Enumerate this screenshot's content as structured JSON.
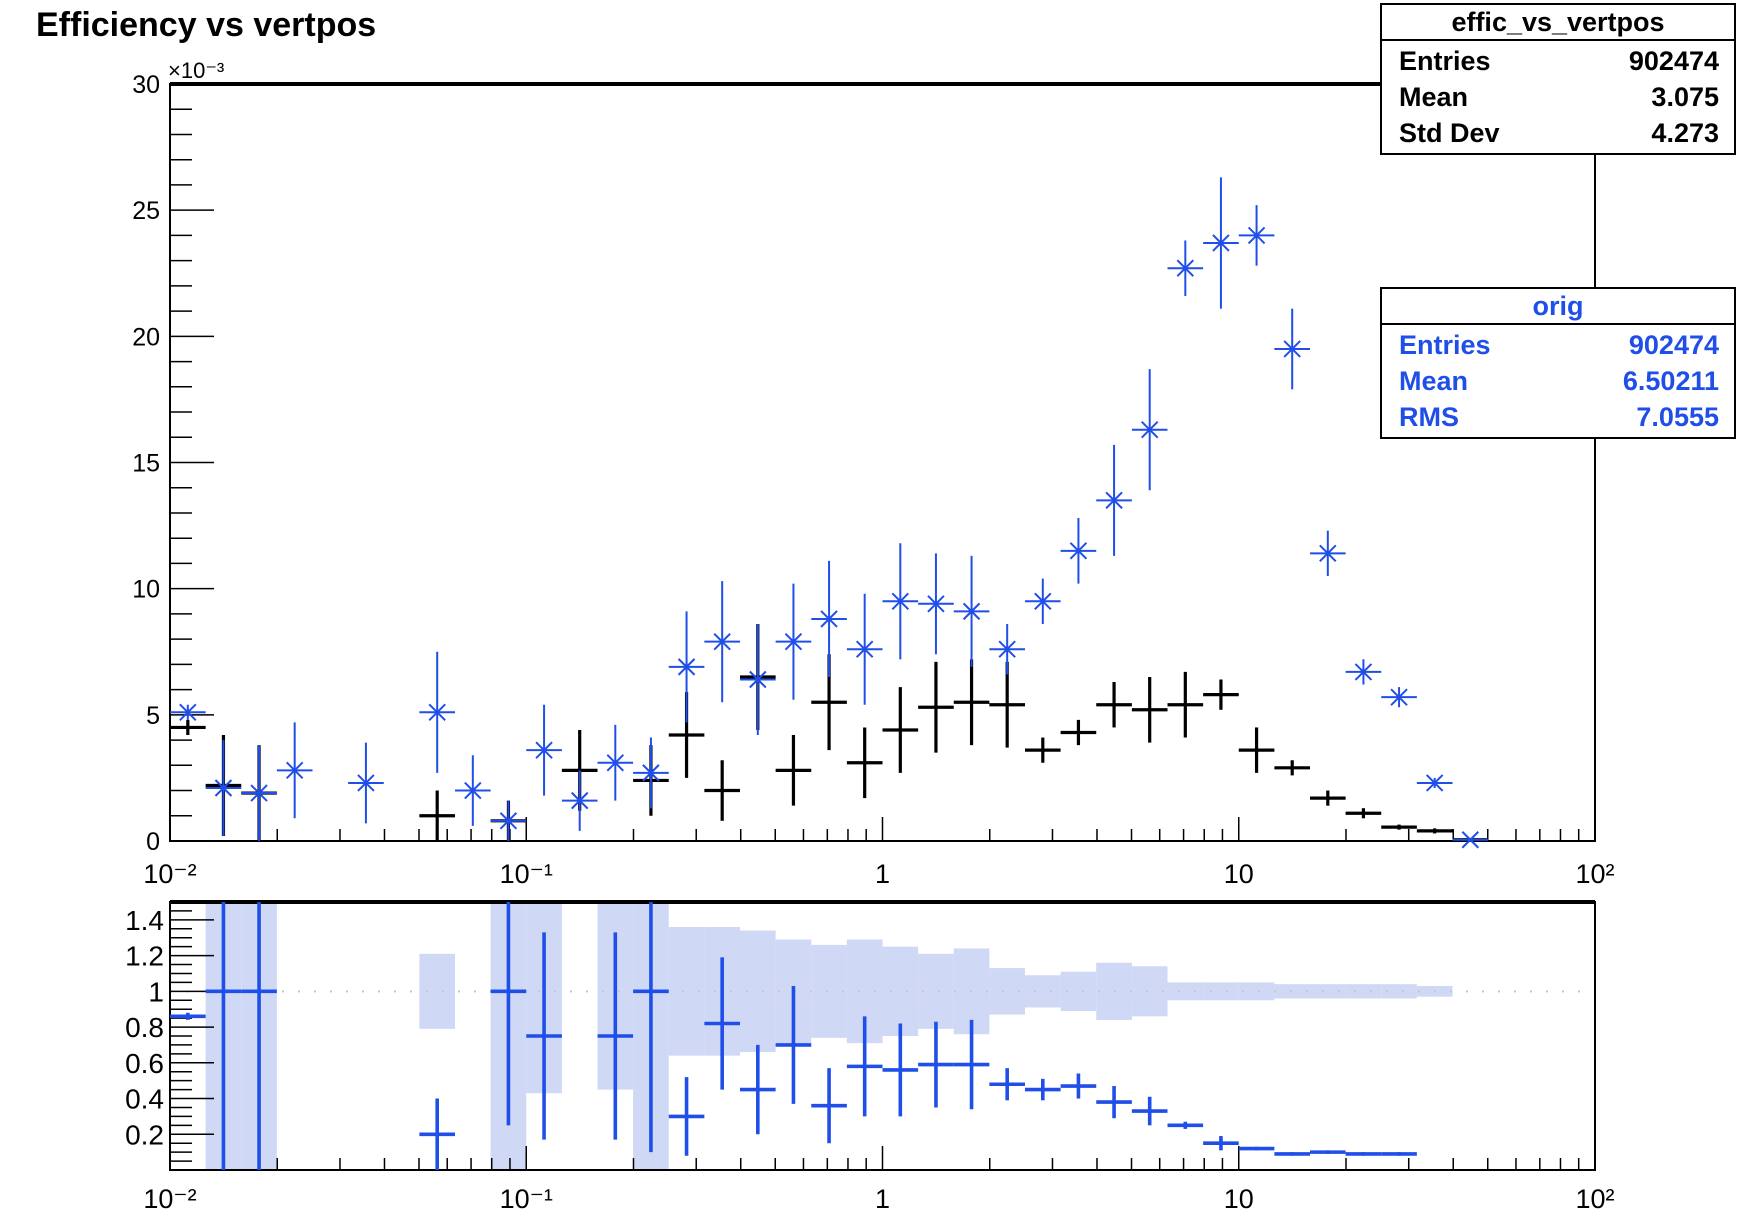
{
  "title": "Efficiency vs vertpos",
  "colors": {
    "black_series": "#000000",
    "blue_series": "#1f4fe8",
    "band_fill": "#cfd8f4",
    "dotted_line": "#c8c8c8"
  },
  "top_axis": {
    "exponent_label": "×10⁻³",
    "y_tick_labels": [
      "0",
      "5",
      "10",
      "15",
      "20",
      "25",
      "30"
    ]
  },
  "x_tick_labels": [
    "10⁻²",
    "10⁻¹",
    "1",
    "10",
    "10²"
  ],
  "ratio_axis": {
    "y_tick_labels": [
      "0.2",
      "0.4",
      "0.6",
      "0.8",
      "1",
      "1.2",
      "1.4"
    ]
  },
  "stats_boxes": [
    {
      "title": "effic_vs_vertpos",
      "color": "#000000",
      "rows": [
        {
          "key": "Entries",
          "value": "902474"
        },
        {
          "key": "Mean",
          "value": "3.075"
        },
        {
          "key": "Std Dev",
          "value": "4.273"
        }
      ]
    },
    {
      "title": "orig",
      "color": "#1f4fe8",
      "rows": [
        {
          "key": "Entries",
          "value": "902474"
        },
        {
          "key": "Mean",
          "value": "6.50211"
        },
        {
          "key": "RMS",
          "value": "7.0555"
        }
      ]
    }
  ],
  "chart_data": [
    {
      "type": "scatter",
      "x_scale": "log",
      "xlim": [
        0.01,
        100
      ],
      "ylim": [
        0,
        30
      ],
      "y_multiplier": "1e-3",
      "bin_edges": [
        0.01,
        0.01259,
        0.01585,
        0.01995,
        0.02512,
        0.03162,
        0.03981,
        0.05012,
        0.0631,
        0.07943,
        0.1,
        0.1259,
        0.1585,
        0.1995,
        0.2512,
        0.3162,
        0.3981,
        0.5012,
        0.631,
        0.7943,
        1.0,
        1.259,
        1.585,
        1.995,
        2.512,
        3.162,
        3.981,
        5.012,
        6.31,
        7.943,
        10.0,
        12.59,
        15.85,
        19.95,
        25.12,
        31.62,
        39.81,
        50.12
      ],
      "series": [
        {
          "style": "black-cross",
          "points": [
            {
              "bin": 0,
              "y": 4.5,
              "err": 0.3
            },
            {
              "bin": 1,
              "y": 2.2,
              "err": 2.0
            },
            {
              "bin": 2,
              "y": 1.9,
              "err": 1.9
            },
            {
              "bin": 7,
              "y": 1.0,
              "err": 1.0
            },
            {
              "bin": 9,
              "y": 0.8,
              "err": 0.8
            },
            {
              "bin": 11,
              "y": 2.8,
              "err": 1.6
            },
            {
              "bin": 13,
              "y": 2.4,
              "err": 1.4
            },
            {
              "bin": 14,
              "y": 4.2,
              "err": 1.7
            },
            {
              "bin": 15,
              "y": 2.0,
              "err": 1.2
            },
            {
              "bin": 16,
              "y": 6.5,
              "err": 2.1
            },
            {
              "bin": 17,
              "y": 2.8,
              "err": 1.4
            },
            {
              "bin": 18,
              "y": 5.5,
              "err": 1.9
            },
            {
              "bin": 19,
              "y": 3.1,
              "err": 1.4
            },
            {
              "bin": 20,
              "y": 4.4,
              "err": 1.7
            },
            {
              "bin": 21,
              "y": 5.3,
              "err": 1.8
            },
            {
              "bin": 22,
              "y": 5.5,
              "err": 1.7
            },
            {
              "bin": 23,
              "y": 5.4,
              "err": 1.7
            },
            {
              "bin": 24,
              "y": 3.6,
              "err": 0.5
            },
            {
              "bin": 25,
              "y": 4.3,
              "err": 0.5
            },
            {
              "bin": 26,
              "y": 5.4,
              "err": 0.9
            },
            {
              "bin": 27,
              "y": 5.2,
              "err": 1.3
            },
            {
              "bin": 28,
              "y": 5.4,
              "err": 1.3
            },
            {
              "bin": 29,
              "y": 5.8,
              "err": 0.6
            },
            {
              "bin": 30,
              "y": 3.6,
              "err": 0.9
            },
            {
              "bin": 31,
              "y": 2.9,
              "err": 0.3
            },
            {
              "bin": 32,
              "y": 1.7,
              "err": 0.3
            },
            {
              "bin": 33,
              "y": 1.1,
              "err": 0.2
            },
            {
              "bin": 34,
              "y": 0.55,
              "err": 0.1
            },
            {
              "bin": 35,
              "y": 0.4,
              "err": 0.1
            },
            {
              "bin": 36,
              "y": 0.05,
              "err": 0.05
            }
          ]
        },
        {
          "style": "blue-star",
          "points": [
            {
              "bin": 0,
              "y": 5.1,
              "err": 0.3
            },
            {
              "bin": 1,
              "y": 2.1,
              "err": 1.9
            },
            {
              "bin": 2,
              "y": 1.9,
              "err": 1.9
            },
            {
              "bin": 3,
              "y": 2.8,
              "err": 1.9
            },
            {
              "bin": 5,
              "y": 2.3,
              "err": 1.6
            },
            {
              "bin": 7,
              "y": 5.1,
              "err": 2.4
            },
            {
              "bin": 8,
              "y": 2.0,
              "err": 1.4
            },
            {
              "bin": 9,
              "y": 0.8,
              "err": 0.8
            },
            {
              "bin": 10,
              "y": 3.6,
              "err": 1.8
            },
            {
              "bin": 11,
              "y": 1.6,
              "err": 1.2
            },
            {
              "bin": 12,
              "y": 3.1,
              "err": 1.5
            },
            {
              "bin": 13,
              "y": 2.7,
              "err": 1.4
            },
            {
              "bin": 14,
              "y": 6.9,
              "err": 2.2
            },
            {
              "bin": 15,
              "y": 7.9,
              "err": 2.4
            },
            {
              "bin": 16,
              "y": 6.4,
              "err": 2.2
            },
            {
              "bin": 17,
              "y": 7.9,
              "err": 2.3
            },
            {
              "bin": 18,
              "y": 8.8,
              "err": 2.3
            },
            {
              "bin": 19,
              "y": 7.6,
              "err": 2.2
            },
            {
              "bin": 20,
              "y": 9.5,
              "err": 2.3
            },
            {
              "bin": 21,
              "y": 9.4,
              "err": 2.0
            },
            {
              "bin": 22,
              "y": 9.1,
              "err": 2.2
            },
            {
              "bin": 23,
              "y": 7.6,
              "err": 1.0
            },
            {
              "bin": 24,
              "y": 9.5,
              "err": 0.9
            },
            {
              "bin": 25,
              "y": 11.5,
              "err": 1.3
            },
            {
              "bin": 26,
              "y": 13.5,
              "err": 2.2
            },
            {
              "bin": 27,
              "y": 16.3,
              "err": 2.4
            },
            {
              "bin": 28,
              "y": 22.7,
              "err": 1.1
            },
            {
              "bin": 29,
              "y": 23.7,
              "err": 2.6
            },
            {
              "bin": 30,
              "y": 24.0,
              "err": 1.2
            },
            {
              "bin": 31,
              "y": 19.5,
              "err": 1.6
            },
            {
              "bin": 32,
              "y": 11.4,
              "err": 0.9
            },
            {
              "bin": 33,
              "y": 6.7,
              "err": 0.5
            },
            {
              "bin": 34,
              "y": 5.7,
              "err": 0.4
            },
            {
              "bin": 35,
              "y": 2.3,
              "err": 0.2
            },
            {
              "bin": 36,
              "y": 0.05,
              "err": 0.05
            }
          ]
        }
      ]
    },
    {
      "type": "scatter",
      "x_scale": "log",
      "xlim": [
        0.01,
        100
      ],
      "ylim": [
        0,
        1.5
      ],
      "reference_line": 1,
      "band": [
        {
          "bin": 1,
          "lo": 0,
          "hi": 1.5
        },
        {
          "bin": 2,
          "lo": 0,
          "hi": 1.5
        },
        {
          "bin": 7,
          "lo": 0.79,
          "hi": 1.21
        },
        {
          "bin": 9,
          "lo": 0,
          "hi": 1.5
        },
        {
          "bin": 10,
          "lo": 0.43,
          "hi": 1.5
        },
        {
          "bin": 12,
          "lo": 0.45,
          "hi": 1.5
        },
        {
          "bin": 13,
          "lo": 0,
          "hi": 1.5
        },
        {
          "bin": 14,
          "lo": 0.64,
          "hi": 1.36
        },
        {
          "bin": 15,
          "lo": 0.64,
          "hi": 1.36
        },
        {
          "bin": 16,
          "lo": 0.66,
          "hi": 1.34
        },
        {
          "bin": 17,
          "lo": 0.71,
          "hi": 1.29
        },
        {
          "bin": 18,
          "lo": 0.74,
          "hi": 1.26
        },
        {
          "bin": 19,
          "lo": 0.71,
          "hi": 1.29
        },
        {
          "bin": 20,
          "lo": 0.75,
          "hi": 1.25
        },
        {
          "bin": 21,
          "lo": 0.79,
          "hi": 1.21
        },
        {
          "bin": 22,
          "lo": 0.76,
          "hi": 1.24
        },
        {
          "bin": 23,
          "lo": 0.87,
          "hi": 1.13
        },
        {
          "bin": 24,
          "lo": 0.91,
          "hi": 1.09
        },
        {
          "bin": 25,
          "lo": 0.89,
          "hi": 1.11
        },
        {
          "bin": 26,
          "lo": 0.84,
          "hi": 1.16
        },
        {
          "bin": 27,
          "lo": 0.86,
          "hi": 1.14
        },
        {
          "bin": 28,
          "lo": 0.95,
          "hi": 1.05
        },
        {
          "bin": 29,
          "lo": 0.95,
          "hi": 1.05
        },
        {
          "bin": 30,
          "lo": 0.95,
          "hi": 1.05
        },
        {
          "bin": 31,
          "lo": 0.96,
          "hi": 1.04
        },
        {
          "bin": 32,
          "lo": 0.96,
          "hi": 1.04
        },
        {
          "bin": 33,
          "lo": 0.96,
          "hi": 1.04
        },
        {
          "bin": 34,
          "lo": 0.96,
          "hi": 1.04
        },
        {
          "bin": 35,
          "lo": 0.97,
          "hi": 1.03
        }
      ],
      "series": [
        {
          "style": "blue-cross",
          "points": [
            {
              "bin": 0,
              "y": 0.86,
              "err": 0.02
            },
            {
              "bin": 1,
              "y": 1.0,
              "err": 1.2
            },
            {
              "bin": 2,
              "y": 1.0,
              "err": 1.2
            },
            {
              "bin": 7,
              "y": 0.2,
              "err": 0.2
            },
            {
              "bin": 9,
              "y": 1.0,
              "err": 0.75
            },
            {
              "bin": 10,
              "y": 0.75,
              "err": 0.58
            },
            {
              "bin": 12,
              "y": 0.75,
              "err": 0.58
            },
            {
              "bin": 13,
              "y": 1.0,
              "err": 0.9
            },
            {
              "bin": 14,
              "y": 0.3,
              "err": 0.22
            },
            {
              "bin": 15,
              "y": 0.82,
              "err": 0.37
            },
            {
              "bin": 16,
              "y": 0.45,
              "err": 0.25
            },
            {
              "bin": 17,
              "y": 0.7,
              "err": 0.33
            },
            {
              "bin": 18,
              "y": 0.36,
              "err": 0.21
            },
            {
              "bin": 19,
              "y": 0.58,
              "err": 0.28
            },
            {
              "bin": 20,
              "y": 0.56,
              "err": 0.26
            },
            {
              "bin": 21,
              "y": 0.59,
              "err": 0.24
            },
            {
              "bin": 22,
              "y": 0.59,
              "err": 0.25
            },
            {
              "bin": 23,
              "y": 0.48,
              "err": 0.09
            },
            {
              "bin": 24,
              "y": 0.45,
              "err": 0.06
            },
            {
              "bin": 25,
              "y": 0.47,
              "err": 0.07
            },
            {
              "bin": 26,
              "y": 0.38,
              "err": 0.09
            },
            {
              "bin": 27,
              "y": 0.33,
              "err": 0.08
            },
            {
              "bin": 28,
              "y": 0.25,
              "err": 0.02
            },
            {
              "bin": 29,
              "y": 0.15,
              "err": 0.04
            },
            {
              "bin": 30,
              "y": 0.12,
              "err": 0.01
            },
            {
              "bin": 31,
              "y": 0.09,
              "err": 0.01
            },
            {
              "bin": 32,
              "y": 0.1,
              "err": 0.01
            },
            {
              "bin": 33,
              "y": 0.09,
              "err": 0.01
            },
            {
              "bin": 34,
              "y": 0.09,
              "err": 0.01
            }
          ]
        }
      ]
    }
  ]
}
